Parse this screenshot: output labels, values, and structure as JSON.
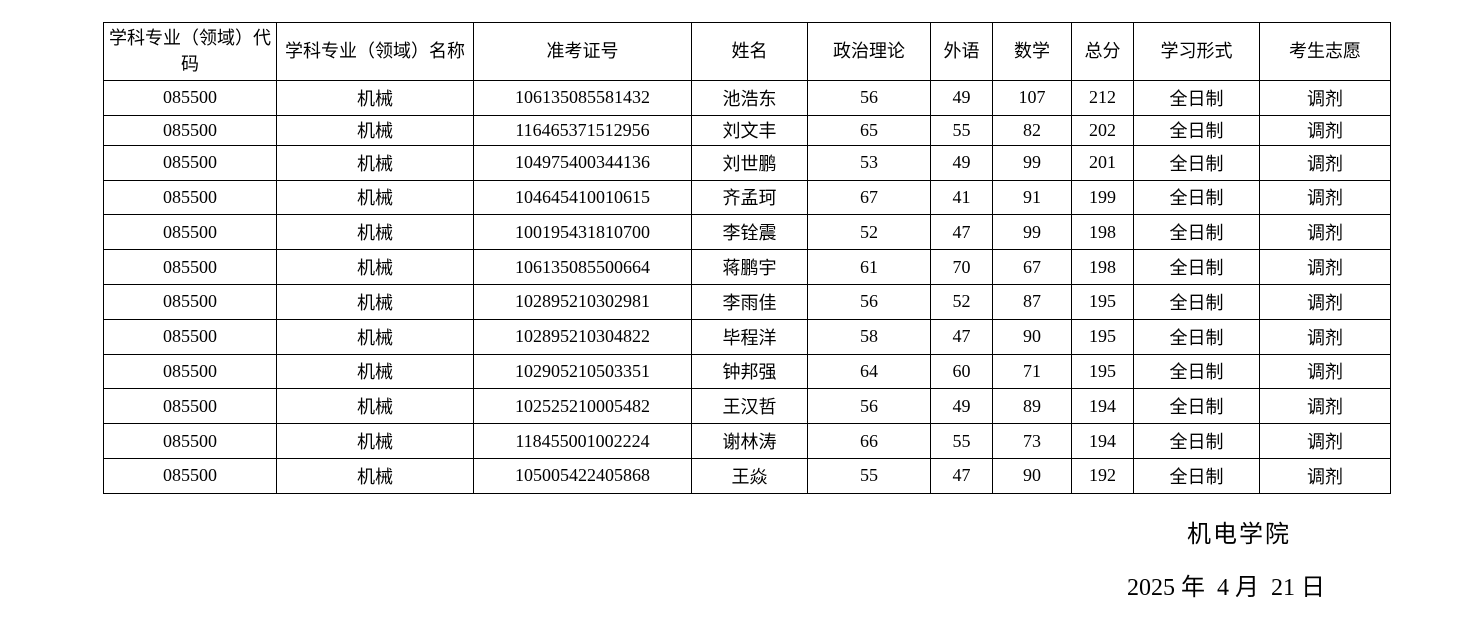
{
  "headers": [
    "学科专业（领域）代码",
    "学科专业（领域）名称",
    "准考证号",
    "姓名",
    "政治理论",
    "外语",
    "数学",
    "总分",
    "学习形式",
    "考生志愿"
  ],
  "rows": [
    [
      "085500",
      "机械",
      "106135085581432",
      "池浩东",
      "56",
      "49",
      "107",
      "212",
      "全日制",
      "调剂"
    ],
    [
      "085500",
      "机械",
      "116465371512956",
      "刘文丰",
      "65",
      "55",
      "82",
      "202",
      "全日制",
      "调剂"
    ],
    [
      "085500",
      "机械",
      "104975400344136",
      "刘世鹏",
      "53",
      "49",
      "99",
      "201",
      "全日制",
      "调剂"
    ],
    [
      "085500",
      "机械",
      "104645410010615",
      "齐孟珂",
      "67",
      "41",
      "91",
      "199",
      "全日制",
      "调剂"
    ],
    [
      "085500",
      "机械",
      "100195431810700",
      "李铨震",
      "52",
      "47",
      "99",
      "198",
      "全日制",
      "调剂"
    ],
    [
      "085500",
      "机械",
      "106135085500664",
      "蒋鹏宇",
      "61",
      "70",
      "67",
      "198",
      "全日制",
      "调剂"
    ],
    [
      "085500",
      "机械",
      "102895210302981",
      "李雨佳",
      "56",
      "52",
      "87",
      "195",
      "全日制",
      "调剂"
    ],
    [
      "085500",
      "机械",
      "102895210304822",
      "毕程洋",
      "58",
      "47",
      "90",
      "195",
      "全日制",
      "调剂"
    ],
    [
      "085500",
      "机械",
      "102905210503351",
      "钟邦强",
      "64",
      "60",
      "71",
      "195",
      "全日制",
      "调剂"
    ],
    [
      "085500",
      "机械",
      "102525210005482",
      "王汉哲",
      "56",
      "49",
      "89",
      "194",
      "全日制",
      "调剂"
    ],
    [
      "085500",
      "机械",
      "118455001002224",
      "谢林涛",
      "66",
      "55",
      "73",
      "194",
      "全日制",
      "调剂"
    ],
    [
      "085500",
      "机械",
      "105005422405868",
      "王焱",
      "55",
      "47",
      "90",
      "192",
      "全日制",
      "调剂"
    ]
  ],
  "footer": {
    "department": "机电学院",
    "date": "2025 年  4 月  21 日"
  }
}
